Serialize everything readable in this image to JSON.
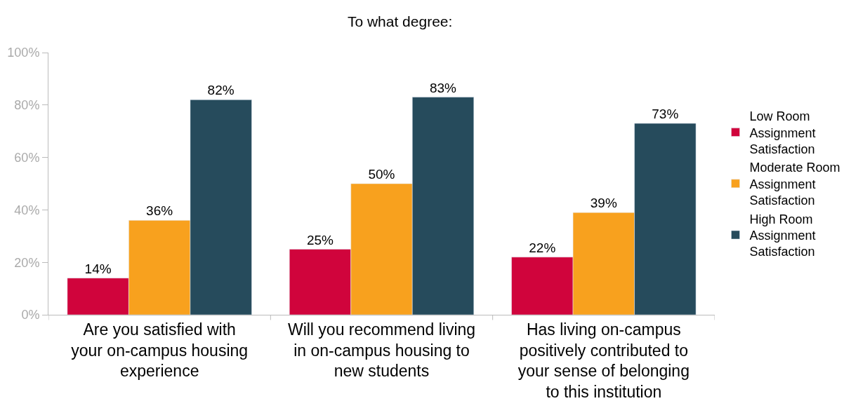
{
  "chart_data": {
    "type": "bar",
    "title": "To what degree:",
    "categories": [
      "Are you satisfied with your on-campus housing experience",
      "Will you recommend living in on-campus housing to new students",
      "Has living on-campus positively contributed to your sense of belonging to this institution"
    ],
    "series": [
      {
        "name": "Low Room Assignment Satisfaction",
        "color": "#d0043c",
        "values": [
          14,
          25,
          22
        ],
        "value_labels": [
          "14%",
          "25%",
          "22%"
        ]
      },
      {
        "name": "Moderate Room Assignment Satisfaction",
        "color": "#f8a11e",
        "values": [
          36,
          50,
          39
        ],
        "value_labels": [
          "36%",
          "50%",
          "39%"
        ]
      },
      {
        "name": "High Room Assignment Satisfaction",
        "color": "#264b5c",
        "values": [
          82,
          83,
          73
        ],
        "value_labels": [
          "82%",
          "83%",
          "73%"
        ]
      }
    ],
    "ylim": [
      0,
      100
    ],
    "yticks": [
      {
        "value": 0,
        "label": "0%"
      },
      {
        "value": 20,
        "label": "20%"
      },
      {
        "value": 40,
        "label": "40%"
      },
      {
        "value": 60,
        "label": "60%"
      },
      {
        "value": 80,
        "label": "80%"
      },
      {
        "value": 100,
        "label": "100%"
      }
    ],
    "legend": "right"
  }
}
